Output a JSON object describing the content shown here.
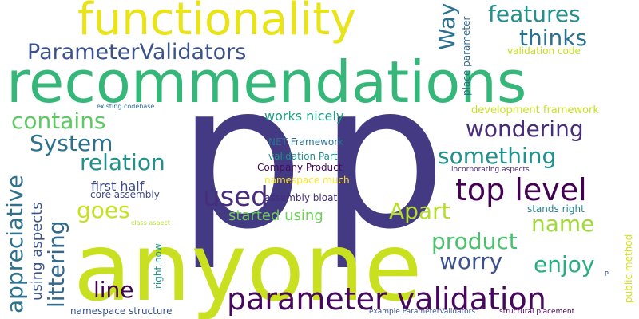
{
  "words": [
    {
      "text": "p",
      "color": "#443983"
    },
    {
      "text": "p",
      "color": "#443983"
    },
    {
      "text": "anyone",
      "color": "#c8e020"
    },
    {
      "text": "recommendations",
      "color": "#35b779"
    },
    {
      "text": "functionality",
      "color": "#e8e419"
    },
    {
      "text": "parameter validation",
      "color": "#46085c"
    },
    {
      "text": "ParameterValidators",
      "color": "#3b528b"
    },
    {
      "text": "top level",
      "color": "#440154"
    },
    {
      "text": "features",
      "color": "#21918c"
    },
    {
      "text": "thinks",
      "color": "#2c728e"
    },
    {
      "text": "Way",
      "color": "#2c728e"
    },
    {
      "text": "contains",
      "color": "#5ec962"
    },
    {
      "text": "wondering",
      "color": "#472d7b"
    },
    {
      "text": "System",
      "color": "#2c728e"
    },
    {
      "text": "something",
      "color": "#21918c"
    },
    {
      "text": "relation",
      "color": "#21918c"
    },
    {
      "text": "appreciative",
      "color": "#2c728e"
    },
    {
      "text": "littering",
      "color": "#31688e"
    },
    {
      "text": "used",
      "color": "#472d7b"
    },
    {
      "text": "goes",
      "color": "#c8e020"
    },
    {
      "text": "Apart",
      "color": "#b5de2b"
    },
    {
      "text": "name",
      "color": "#a0da39"
    },
    {
      "text": "product",
      "color": "#4ac16d"
    },
    {
      "text": "worry",
      "color": "#3b528b"
    },
    {
      "text": "enjoy",
      "color": "#28ae80"
    },
    {
      "text": "line",
      "color": "#440154"
    },
    {
      "text": "using aspects",
      "color": "#3b528b"
    },
    {
      "text": "started using",
      "color": "#6ece58"
    },
    {
      "text": "works nicely",
      "color": "#1fa088"
    },
    {
      "text": "first half",
      "color": "#3e4989"
    },
    {
      "text": "NET Framework",
      "color": "#2c728e"
    },
    {
      "text": "validation Part",
      "color": "#21918c"
    },
    {
      "text": "Company Product",
      "color": "#46085c"
    },
    {
      "text": "namespace much",
      "color": "#fde725"
    },
    {
      "text": "core assembly",
      "color": "#3e4989"
    },
    {
      "text": "assembly bloat",
      "color": "#472d7b"
    },
    {
      "text": "validation code",
      "color": "#c8e020"
    },
    {
      "text": "development framework",
      "color": "#c8e020"
    },
    {
      "text": "place parameter",
      "color": "#31688e"
    },
    {
      "text": "stands right",
      "color": "#26828e"
    },
    {
      "text": "incorporating aspects",
      "color": "#482878"
    },
    {
      "text": "public method",
      "color": "#d8e219"
    },
    {
      "text": "right now",
      "color": "#21918c"
    },
    {
      "text": "namespace structure",
      "color": "#3b528b"
    },
    {
      "text": "example ParameterValidators",
      "color": "#3b528b"
    },
    {
      "text": "structural placement",
      "color": "#440154"
    },
    {
      "text": "existing codebase",
      "color": "#31688e"
    },
    {
      "text": "class aspect",
      "color": "#b5de2b"
    },
    {
      "text": "P",
      "color": "#3b528b"
    }
  ]
}
